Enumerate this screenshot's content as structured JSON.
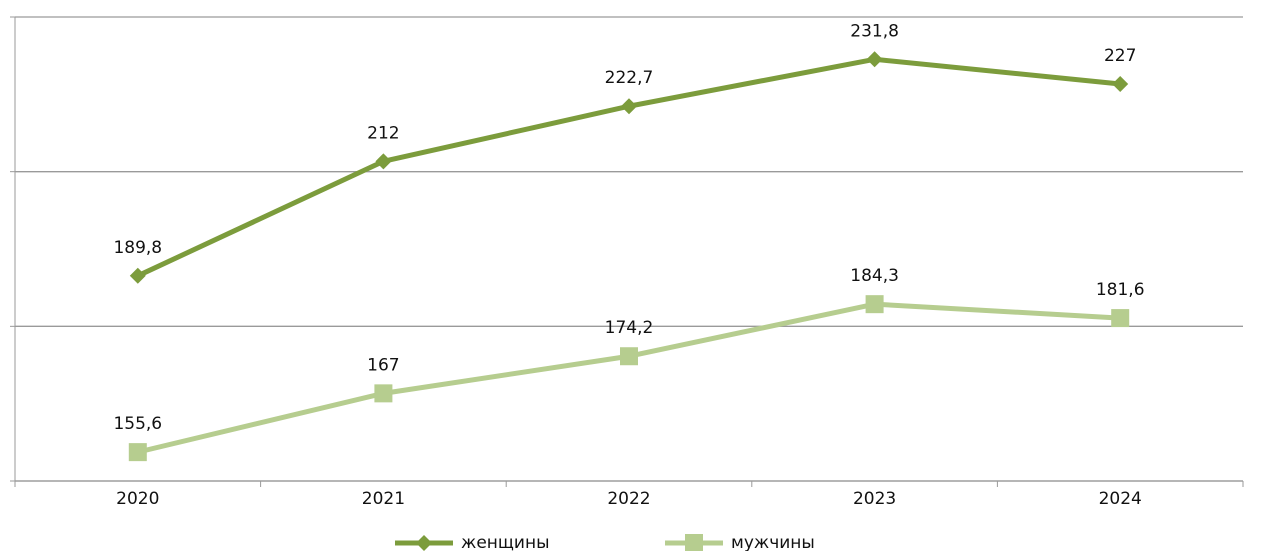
{
  "chart_data": {
    "type": "line",
    "categories": [
      "2020",
      "2021",
      "2022",
      "2023",
      "2024"
    ],
    "series": [
      {
        "name": "женщины",
        "color": "#7c9c3c",
        "marker": "diamond",
        "values": [
          189.8,
          212,
          222.7,
          231.8,
          227
        ],
        "value_labels": [
          "189,8",
          "212",
          "222,7",
          "231,8",
          "227"
        ]
      },
      {
        "name": "мужчины",
        "color": "#b6cd8f",
        "marker": "square",
        "values": [
          155.6,
          167,
          174.2,
          184.3,
          181.6
        ],
        "value_labels": [
          "155,6",
          "167",
          "174,2",
          "184,3",
          "181,6"
        ]
      }
    ],
    "ylim": [
      150,
      240
    ],
    "yticks": [
      150,
      180,
      210,
      240
    ],
    "grid": true,
    "legend": "bottom"
  }
}
